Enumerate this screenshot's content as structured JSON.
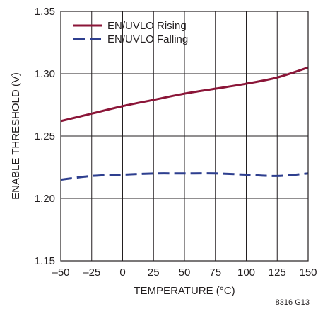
{
  "chart_data": {
    "type": "line",
    "xlabel": "TEMPERATURE (°C)",
    "ylabel": "ENABLE THRESHOLD (V)",
    "xlim": [
      -50,
      150
    ],
    "ylim": [
      1.15,
      1.35
    ],
    "x_ticks": [
      "–50",
      "–25",
      "0",
      "25",
      "50",
      "75",
      "100",
      "125",
      "150"
    ],
    "y_ticks": [
      "1.15",
      "1.20",
      "1.25",
      "1.30",
      "1.35"
    ],
    "grid": true,
    "legend_position": "top-left",
    "x": [
      -50,
      -25,
      0,
      25,
      50,
      75,
      100,
      125,
      150
    ],
    "series": [
      {
        "name": "EN/UVLO Rising",
        "values": [
          1.262,
          1.268,
          1.274,
          1.279,
          1.284,
          1.288,
          1.292,
          1.297,
          1.305
        ],
        "color": "#8b1538",
        "style": "solid"
      },
      {
        "name": "EN/UVLO Falling",
        "values": [
          1.215,
          1.218,
          1.219,
          1.22,
          1.22,
          1.22,
          1.219,
          1.218,
          1.22
        ],
        "color": "#2e3f8f",
        "style": "dashed"
      }
    ],
    "figure_id": "8316 G13"
  }
}
